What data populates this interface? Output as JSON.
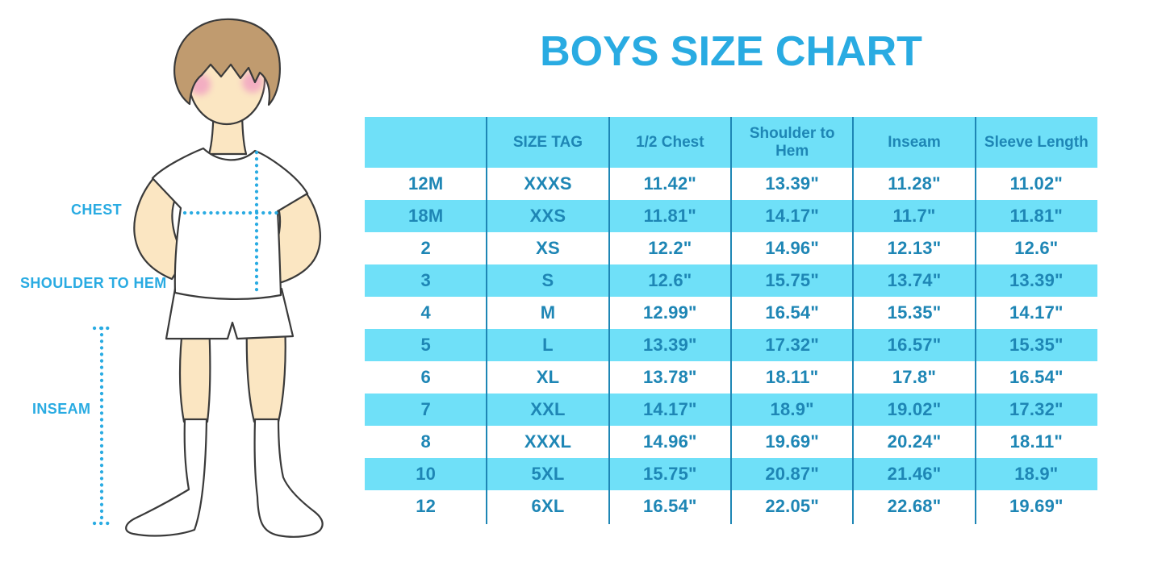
{
  "title": "BOYS SIZE CHART",
  "colors": {
    "accent": "#29ABE2",
    "table_fill": "#6FE0F8",
    "table_ink": "#1E86B5",
    "skin": "#FBE6C2",
    "hair": "#C09B6F",
    "blush": "#F3AEC2"
  },
  "figure": {
    "labels": [
      {
        "text": "CHEST"
      },
      {
        "text": "SHOULDER TO HEM"
      },
      {
        "text": "INSEAM"
      }
    ]
  },
  "chart_data": {
    "type": "table",
    "title": "BOYS SIZE CHART",
    "columns": [
      "",
      "SIZE TAG",
      "1/2 Chest",
      "Shoulder to Hem",
      "Inseam",
      "Sleeve Length"
    ],
    "rows": [
      [
        "12M",
        "XXXS",
        "11.42\"",
        "13.39\"",
        "11.28\"",
        "11.02\""
      ],
      [
        "18M",
        "XXS",
        "11.81\"",
        "14.17\"",
        "11.7\"",
        "11.81\""
      ],
      [
        "2",
        "XS",
        "12.2\"",
        "14.96\"",
        "12.13\"",
        "12.6\""
      ],
      [
        "3",
        "S",
        "12.6\"",
        "15.75\"",
        "13.74\"",
        "13.39\""
      ],
      [
        "4",
        "M",
        "12.99\"",
        "16.54\"",
        "15.35\"",
        "14.17\""
      ],
      [
        "5",
        "L",
        "13.39\"",
        "17.32\"",
        "16.57\"",
        "15.35\""
      ],
      [
        "6",
        "XL",
        "13.78\"",
        "18.11\"",
        "17.8\"",
        "16.54\""
      ],
      [
        "7",
        "XXL",
        "14.17\"",
        "18.9\"",
        "19.02\"",
        "17.32\""
      ],
      [
        "8",
        "XXXL",
        "14.96\"",
        "19.69\"",
        "20.24\"",
        "18.11\""
      ],
      [
        "10",
        "5XL",
        "15.75\"",
        "20.87\"",
        "21.46\"",
        "18.9\""
      ],
      [
        "12",
        "6XL",
        "16.54\"",
        "22.05\"",
        "22.68\"",
        "19.69\""
      ]
    ]
  }
}
